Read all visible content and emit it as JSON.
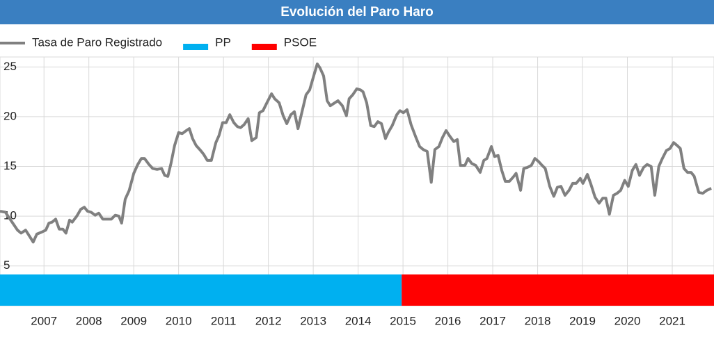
{
  "chart_data": {
    "type": "line",
    "title": "Evolución del Paro Haro",
    "x": [
      2006.52,
      2006.64,
      2006.91,
      2006.99,
      2007.09,
      2007.19,
      2007.26,
      2007.34,
      2007.45,
      2007.54,
      2007.61,
      2007.68,
      2007.76,
      2007.84,
      2007.92,
      2007.99,
      2008.07,
      2008.13,
      2008.23,
      2008.32,
      2008.4,
      2008.47,
      2008.55,
      2008.64,
      2008.72,
      2008.81,
      2008.92,
      2009.0,
      2009.09,
      2009.17,
      2009.23,
      2009.31,
      2009.4,
      2009.5,
      2009.59,
      2009.67,
      2009.74,
      2009.84,
      2009.92,
      2010.02,
      2010.12,
      2010.19,
      2010.26,
      2010.33,
      2010.41,
      2010.5,
      2010.58,
      2010.67,
      2010.74,
      2010.81,
      2010.89,
      2010.99,
      2011.06,
      2011.14,
      2011.23,
      2011.33,
      2011.4,
      2011.48,
      2011.56,
      2011.64,
      2011.73,
      2011.81,
      2011.88,
      2011.96,
      2012.05,
      2012.13,
      2012.23,
      2012.3,
      2012.38,
      2012.49,
      2012.57,
      2012.64,
      2012.74,
      2012.83,
      2012.91,
      2013.0,
      2013.08,
      2013.16,
      2013.25,
      2013.34,
      2013.42,
      2013.51,
      2013.59,
      2013.65,
      2013.73,
      2013.81,
      2013.88,
      2013.98,
      2014.05,
      2014.15,
      2014.24,
      2014.3,
      2014.38,
      2014.47,
      2014.55,
      2014.61,
      2014.69,
      2014.78,
      2014.86,
      2014.94,
      2015.02,
      2015.11,
      2015.17,
      2015.26,
      2015.36,
      2015.43,
      2015.51,
      2015.59,
      2015.68,
      2015.78,
      2015.87,
      2015.95,
      2016.04,
      2016.13,
      2016.21,
      2016.3,
      2016.38,
      2016.46,
      2016.55,
      2016.63,
      2016.71,
      2016.78,
      2016.88,
      2016.95,
      2017.03,
      2017.12,
      2017.22,
      2017.3,
      2017.37,
      2017.47,
      2017.54,
      2017.62,
      2017.7,
      2017.78,
      2017.87,
      2017.95,
      2018.02,
      2018.12,
      2018.19,
      2018.27,
      2018.36,
      2018.44,
      2018.52,
      2018.6,
      2018.67,
      2018.77,
      2018.86,
      2018.94,
      2019.02,
      2019.11,
      2019.2,
      2019.28,
      2019.36,
      2019.45,
      2019.51,
      2019.61,
      2019.68,
      2019.78,
      2019.87,
      2019.95,
      2020.02,
      2020.1,
      2020.19,
      2020.27,
      2020.35,
      2020.44,
      2020.52,
      2020.61,
      2020.69,
      2020.77,
      2020.86,
      2020.94,
      2021.03,
      2021.11,
      2021.2,
      2021.28,
      2021.37,
      2021.45,
      2021.53,
      2021.61,
      2021.68,
      2021.76,
      2021.84,
      2021.92,
      2021.99,
      2022.09,
      2022.18,
      2022.27,
      2022.37
    ],
    "series": [
      {
        "name": "Tasa de Paro Registrado",
        "color": "#808080",
        "values": [
          10.5,
          10.4,
          8.6,
          8.3,
          8.6,
          7.9,
          7.4,
          8.2,
          8.4,
          8.6,
          9.3,
          9.4,
          9.7,
          8.7,
          8.7,
          8.3,
          9.6,
          9.4,
          10.0,
          10.7,
          10.9,
          10.5,
          10.4,
          10.1,
          10.3,
          9.7,
          9.7,
          9.7,
          10.1,
          10.0,
          9.3,
          11.7,
          12.6,
          14.3,
          15.2,
          15.8,
          15.8,
          15.2,
          14.8,
          14.7,
          14.8,
          14.1,
          14.0,
          15.3,
          17.1,
          18.4,
          18.3,
          18.6,
          18.8,
          17.8,
          17.1,
          16.6,
          16.2,
          15.6,
          15.6,
          17.4,
          18.1,
          19.4,
          19.4,
          20.2,
          19.4,
          19.0,
          18.9,
          19.2,
          19.8,
          17.6,
          17.9,
          20.4,
          20.6,
          21.6,
          22.3,
          21.8,
          21.4,
          20.1,
          19.3,
          20.2,
          20.5,
          18.8,
          20.5,
          22.2,
          22.7,
          24.1,
          25.3,
          24.9,
          24.1,
          21.6,
          21.1,
          21.4,
          21.6,
          21.1,
          20.1,
          21.8,
          22.2,
          22.8,
          22.7,
          22.5,
          21.4,
          19.1,
          19.0,
          19.5,
          19.3,
          17.8,
          18.4,
          19.1,
          20.2,
          20.6,
          20.4,
          20.7,
          19.2,
          18.0,
          17.0,
          16.7,
          16.5,
          13.4,
          16.7,
          17.0,
          17.9,
          18.6,
          18.0,
          17.5,
          17.7,
          15.1,
          15.1,
          15.8,
          15.3,
          15.1,
          14.4,
          15.6,
          15.8,
          17.0,
          16.0,
          16.1,
          14.6,
          13.5,
          13.5,
          13.9,
          14.3,
          12.6,
          14.8,
          14.9,
          15.1,
          15.8,
          15.5,
          15.1,
          14.8,
          13.0,
          12.0,
          12.9,
          13.0,
          12.1,
          12.6,
          13.3,
          13.3,
          13.8,
          13.3,
          14.2,
          13.3,
          11.9,
          11.3,
          11.8,
          11.8,
          10.2,
          12.1,
          12.3,
          12.6,
          13.6,
          13.0,
          14.6,
          15.2,
          14.1,
          14.9,
          15.2,
          15.0,
          12.1,
          15.0,
          15.8,
          16.6,
          16.8,
          17.4,
          17.1,
          16.8,
          14.8,
          14.4,
          14.4,
          14.0,
          12.4,
          12.3,
          12.6,
          12.8
        ]
      }
    ],
    "periods": [
      {
        "name": "PP",
        "color": "#00b0f0",
        "start": 2006.52,
        "end": 2015.47
      },
      {
        "name": "PSOE",
        "color": "#ff0000",
        "start": 2015.47,
        "end": 2022.43
      }
    ],
    "xlim": [
      2006.52,
      2022.43
    ],
    "xticks": [
      {
        "value": 2007.5,
        "label": "2007"
      },
      {
        "value": 2008.5,
        "label": "2008"
      },
      {
        "value": 2009.5,
        "label": "2009"
      },
      {
        "value": 2010.5,
        "label": "2010"
      },
      {
        "value": 2011.5,
        "label": "2011"
      },
      {
        "value": 2012.5,
        "label": "2012"
      },
      {
        "value": 2013.5,
        "label": "2013"
      },
      {
        "value": 2014.5,
        "label": "2014"
      },
      {
        "value": 2015.5,
        "label": "2015"
      },
      {
        "value": 2016.5,
        "label": "2016"
      },
      {
        "value": 2017.5,
        "label": "2017"
      },
      {
        "value": 2018.5,
        "label": "2018"
      },
      {
        "value": 2019.5,
        "label": "2019"
      },
      {
        "value": 2020.5,
        "label": "2020"
      },
      {
        "value": 2021.5,
        "label": "2021"
      }
    ],
    "ylim": [
      1,
      26
    ],
    "yticks": [
      5,
      10,
      15,
      20,
      25
    ],
    "grid": true
  }
}
